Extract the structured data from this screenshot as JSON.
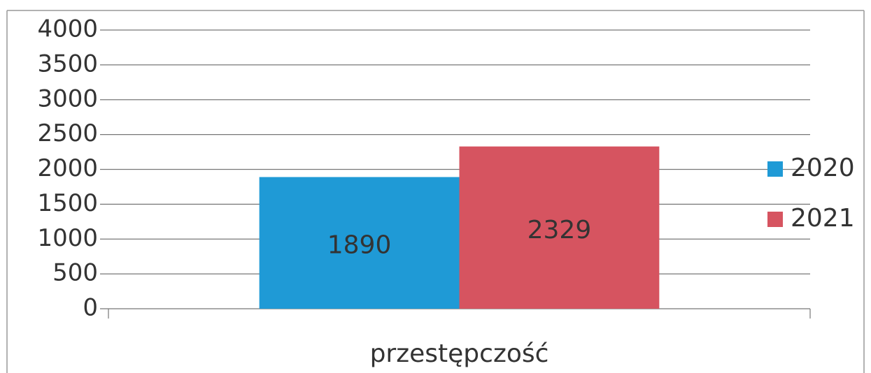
{
  "chart_data": {
    "type": "bar",
    "categories": [
      "przestępczość"
    ],
    "series": [
      {
        "name": "2020",
        "color": "#1f9ad6",
        "values": [
          1890
        ]
      },
      {
        "name": "2021",
        "color": "#d65460",
        "values": [
          2329
        ]
      }
    ],
    "ylim": [
      0,
      4000
    ],
    "yticks": [
      0,
      500,
      1000,
      1500,
      2000,
      2500,
      3000,
      3500,
      4000
    ],
    "grid": true,
    "legend": "right"
  }
}
